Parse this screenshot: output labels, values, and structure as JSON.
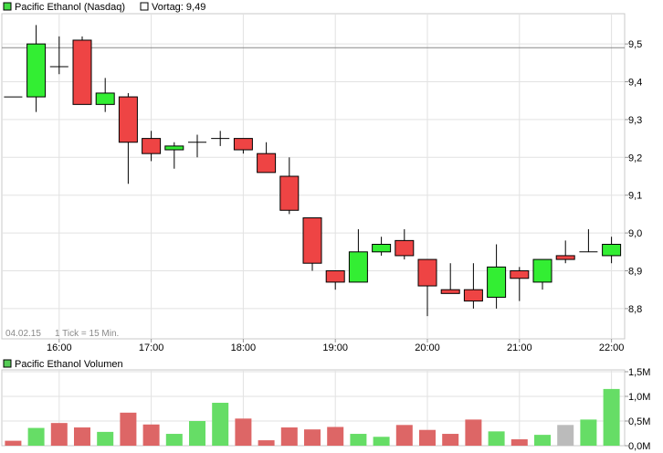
{
  "legend": {
    "series_name": "Pacific Ethanol (Nasdaq)",
    "prev_label": "Vortag: 9,49",
    "series_color": "#44dd44",
    "prev_color": "#ffffff"
  },
  "footer": {
    "date": "04.02.15",
    "tick_info": "1 Tick = 15 Min."
  },
  "volume_legend": {
    "label": "Pacific Ethanol Volumen",
    "color": "#55cc55"
  },
  "chart_data": [
    {
      "type": "candlestick",
      "title": "Pacific Ethanol (Nasdaq)",
      "reference_line": {
        "label": "Vortag",
        "value": 9.49
      },
      "y_ticks": [
        "9,5",
        "9,4",
        "9,3",
        "9,2",
        "9,1",
        "9,0",
        "8,9",
        "8,8"
      ],
      "y_tick_values": [
        9.5,
        9.4,
        9.3,
        9.2,
        9.1,
        9.0,
        8.9,
        8.8
      ],
      "ylim": [
        8.72,
        9.58
      ],
      "x_ticks": [
        "16:00",
        "17:00",
        "18:00",
        "19:00",
        "20:00",
        "21:00",
        "22:00"
      ],
      "grid": true,
      "up_color": "#33ee33",
      "down_color": "#ee4444",
      "candles": [
        {
          "o": 9.36,
          "h": 9.36,
          "l": 9.36,
          "c": 9.36
        },
        {
          "o": 9.36,
          "h": 9.55,
          "l": 9.32,
          "c": 9.5
        },
        {
          "o": 9.44,
          "h": 9.52,
          "l": 9.42,
          "c": 9.44
        },
        {
          "o": 9.51,
          "h": 9.52,
          "l": 9.34,
          "c": 9.34
        },
        {
          "o": 9.34,
          "h": 9.41,
          "l": 9.32,
          "c": 9.37
        },
        {
          "o": 9.36,
          "h": 9.37,
          "l": 9.13,
          "c": 9.24
        },
        {
          "o": 9.25,
          "h": 9.27,
          "l": 9.19,
          "c": 9.21
        },
        {
          "o": 9.22,
          "h": 9.24,
          "l": 9.17,
          "c": 9.23
        },
        {
          "o": 9.24,
          "h": 9.26,
          "l": 9.2,
          "c": 9.24
        },
        {
          "o": 9.25,
          "h": 9.27,
          "l": 9.23,
          "c": 9.25
        },
        {
          "o": 9.25,
          "h": 9.25,
          "l": 9.21,
          "c": 9.22
        },
        {
          "o": 9.21,
          "h": 9.24,
          "l": 9.16,
          "c": 9.16
        },
        {
          "o": 9.15,
          "h": 9.2,
          "l": 9.05,
          "c": 9.06
        },
        {
          "o": 9.04,
          "h": 9.04,
          "l": 8.9,
          "c": 8.92
        },
        {
          "o": 8.9,
          "h": 8.9,
          "l": 8.85,
          "c": 8.87
        },
        {
          "o": 8.87,
          "h": 9.01,
          "l": 8.87,
          "c": 8.95
        },
        {
          "o": 8.95,
          "h": 8.99,
          "l": 8.94,
          "c": 8.97
        },
        {
          "o": 8.98,
          "h": 9.01,
          "l": 8.93,
          "c": 8.94
        },
        {
          "o": 8.93,
          "h": 8.93,
          "l": 8.78,
          "c": 8.86
        },
        {
          "o": 8.85,
          "h": 8.92,
          "l": 8.84,
          "c": 8.84
        },
        {
          "o": 8.85,
          "h": 8.92,
          "l": 8.8,
          "c": 8.82
        },
        {
          "o": 8.83,
          "h": 8.97,
          "l": 8.8,
          "c": 8.91
        },
        {
          "o": 8.9,
          "h": 8.91,
          "l": 8.82,
          "c": 8.88
        },
        {
          "o": 8.87,
          "h": 8.93,
          "l": 8.85,
          "c": 8.93
        },
        {
          "o": 8.94,
          "h": 8.98,
          "l": 8.92,
          "c": 8.93
        },
        {
          "o": 8.95,
          "h": 9.01,
          "l": 8.95,
          "c": 8.95
        },
        {
          "o": 8.94,
          "h": 8.99,
          "l": 8.92,
          "c": 8.97
        }
      ]
    },
    {
      "type": "bar",
      "title": "Pacific Ethanol Volumen",
      "y_ticks": [
        "1,5M",
        "1,0M",
        "0,5M",
        "0,0M"
      ],
      "y_tick_values": [
        1.5,
        1.0,
        0.5,
        0.0
      ],
      "ylim": [
        0,
        1.5
      ],
      "unit": "M",
      "values": [
        0.1,
        0.36,
        0.46,
        0.37,
        0.28,
        0.67,
        0.43,
        0.24,
        0.5,
        0.87,
        0.55,
        0.11,
        0.37,
        0.33,
        0.38,
        0.24,
        0.18,
        0.42,
        0.32,
        0.24,
        0.53,
        0.29,
        0.13,
        0.22,
        0.42,
        0.53,
        1.15
      ],
      "colors": [
        "down",
        "up",
        "down",
        "down",
        "up",
        "down",
        "down",
        "up",
        "up",
        "up",
        "down",
        "down",
        "down",
        "down",
        "down",
        "up",
        "up",
        "down",
        "down",
        "down",
        "down",
        "up",
        "down",
        "up",
        "neutral",
        "up",
        "up"
      ],
      "color_map": {
        "up": "#66dd66",
        "down": "#dd6666",
        "neutral": "#bbbbbb"
      }
    }
  ]
}
